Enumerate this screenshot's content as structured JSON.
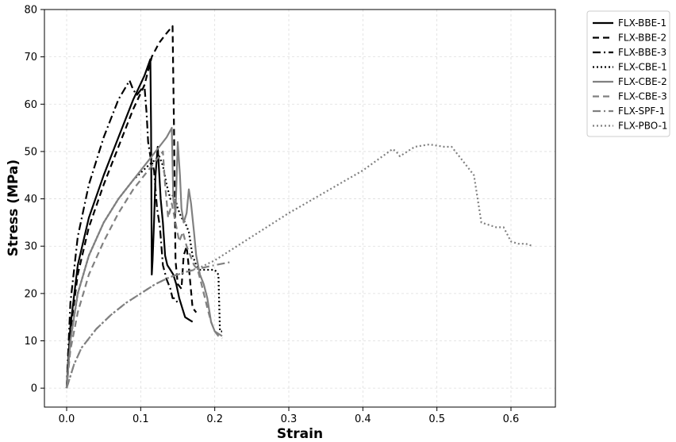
{
  "chart_data": {
    "type": "line",
    "title": "",
    "xlabel": "Strain",
    "ylabel": "Stress (MPa)",
    "xlim": [
      -0.03,
      0.66
    ],
    "ylim": [
      -4,
      80
    ],
    "xticks": [
      0.0,
      0.1,
      0.2,
      0.3,
      0.4,
      0.5,
      0.6
    ],
    "xtick_labels": [
      "0.0",
      "0.1",
      "0.2",
      "0.3",
      "0.4",
      "0.5",
      "0.6"
    ],
    "yticks": [
      0,
      10,
      20,
      30,
      40,
      50,
      60,
      70,
      80
    ],
    "ytick_labels": [
      "0",
      "10",
      "20",
      "30",
      "40",
      "50",
      "60",
      "70",
      "80"
    ],
    "grid": true,
    "legend_position": "outside-top-right",
    "series": [
      {
        "name": "FLX-BBE-1",
        "color": "#000000",
        "dash": "solid",
        "x": [
          0,
          0.005,
          0.015,
          0.03,
          0.05,
          0.07,
          0.09,
          0.105,
          0.113,
          0.114,
          0.115,
          0.116,
          0.118,
          0.12,
          0.123,
          0.127,
          0.13,
          0.133,
          0.136,
          0.14,
          0.144,
          0.148,
          0.152,
          0.156,
          0.16,
          0.165,
          0.17
        ],
        "y": [
          0,
          13,
          26,
          36,
          45,
          53,
          61,
          66,
          69.5,
          55,
          24,
          27,
          35,
          45,
          51,
          40,
          35,
          28,
          26,
          25,
          24,
          22,
          19,
          17,
          15,
          14.5,
          14
        ]
      },
      {
        "name": "FLX-BBE-2",
        "color": "#000000",
        "dash": "8,5",
        "x": [
          0,
          0.005,
          0.015,
          0.03,
          0.05,
          0.07,
          0.09,
          0.105,
          0.115,
          0.125,
          0.135,
          0.143,
          0.145,
          0.147,
          0.15,
          0.155,
          0.158,
          0.162,
          0.166,
          0.17,
          0.175
        ],
        "y": [
          0,
          12,
          24,
          34,
          43,
          51,
          59,
          64,
          70,
          73,
          75,
          76.5,
          55,
          27,
          22,
          21,
          28,
          30,
          24,
          17,
          16
        ]
      },
      {
        "name": "FLX-BBE-3",
        "color": "#000000",
        "dash": "10,4,2,4",
        "x": [
          0,
          0.005,
          0.015,
          0.03,
          0.05,
          0.07,
          0.085,
          0.09,
          0.095,
          0.1,
          0.105,
          0.108,
          0.11,
          0.113,
          0.115,
          0.118,
          0.122,
          0.126,
          0.13,
          0.135,
          0.14,
          0.143,
          0.146,
          0.15
        ],
        "y": [
          0,
          18,
          32,
          43,
          53,
          61,
          65,
          63,
          62,
          63,
          64,
          58,
          52,
          49,
          48,
          46,
          38,
          34,
          26,
          23,
          21,
          19,
          19,
          18
        ]
      },
      {
        "name": "FLX-CBE-1",
        "color": "#000000",
        "dash": "2,3",
        "x": [
          0,
          0.005,
          0.015,
          0.03,
          0.05,
          0.07,
          0.09,
          0.11,
          0.125,
          0.13,
          0.135,
          0.14,
          0.145,
          0.15,
          0.155,
          0.16,
          0.165,
          0.17,
          0.175,
          0.18,
          0.19,
          0.2,
          0.205,
          0.207,
          0.21
        ],
        "y": [
          0,
          10,
          20,
          28,
          35,
          40,
          44,
          47,
          49,
          47,
          43,
          40,
          41,
          38,
          36,
          35,
          33,
          28,
          26,
          25,
          25,
          25,
          24,
          12,
          12
        ]
      },
      {
        "name": "FLX-CBE-2",
        "color": "#808080",
        "dash": "solid",
        "x": [
          0,
          0.005,
          0.015,
          0.03,
          0.05,
          0.07,
          0.09,
          0.11,
          0.125,
          0.135,
          0.142,
          0.144,
          0.147,
          0.15,
          0.153,
          0.155,
          0.158,
          0.162,
          0.165,
          0.168,
          0.172,
          0.175,
          0.18,
          0.185,
          0.19,
          0.195,
          0.2,
          0.205,
          0.21
        ],
        "y": [
          0,
          10,
          20,
          28,
          35,
          40,
          44,
          48,
          51,
          53,
          55,
          40,
          37,
          52,
          45,
          38,
          35,
          37,
          42,
          39,
          33,
          28,
          24,
          22,
          19,
          14,
          12,
          11.5,
          11
        ]
      },
      {
        "name": "FLX-CBE-3",
        "color": "#808080",
        "dash": "8,5",
        "x": [
          0,
          0.005,
          0.015,
          0.03,
          0.05,
          0.07,
          0.09,
          0.11,
          0.125,
          0.13,
          0.133,
          0.137,
          0.142,
          0.147,
          0.152,
          0.157,
          0.162,
          0.167,
          0.172,
          0.177,
          0.182,
          0.19,
          0.195,
          0.2,
          0.205,
          0.21
        ],
        "y": [
          0,
          8,
          16,
          24,
          31,
          37,
          42,
          46,
          49,
          50,
          43,
          36,
          39,
          35,
          31,
          33,
          30,
          28,
          26,
          25,
          22,
          17,
          14,
          12,
          11,
          10.5
        ]
      },
      {
        "name": "FLX-SPF-1",
        "color": "#808080",
        "dash": "10,4,2,4",
        "x": [
          0,
          0.01,
          0.02,
          0.04,
          0.06,
          0.08,
          0.1,
          0.12,
          0.14,
          0.16,
          0.18,
          0.2,
          0.22
        ],
        "y": [
          0,
          5,
          8.5,
          12.5,
          15.5,
          18,
          20,
          22,
          23.5,
          24.5,
          25.3,
          26,
          26.6
        ]
      },
      {
        "name": "FLX-PBO-1",
        "color": "#808080",
        "dash": "2,3",
        "x": [
          0,
          0.01,
          0.02,
          0.04,
          0.06,
          0.08,
          0.1,
          0.12,
          0.14,
          0.16,
          0.18,
          0.2,
          0.25,
          0.3,
          0.35,
          0.4,
          0.44,
          0.445,
          0.45,
          0.47,
          0.49,
          0.51,
          0.52,
          0.53,
          0.54,
          0.55,
          0.555,
          0.56,
          0.57,
          0.58,
          0.59,
          0.6,
          0.61,
          0.62,
          0.63
        ],
        "y": [
          0,
          5,
          8.5,
          12.5,
          15.5,
          18,
          20,
          22,
          23.5,
          24.5,
          25.5,
          27,
          32,
          37,
          41.5,
          46,
          50.5,
          50,
          49,
          51,
          51.5,
          51,
          51,
          49,
          47,
          45,
          40,
          35,
          34.5,
          34,
          34,
          31,
          30.5,
          30.5,
          30
        ]
      }
    ]
  }
}
